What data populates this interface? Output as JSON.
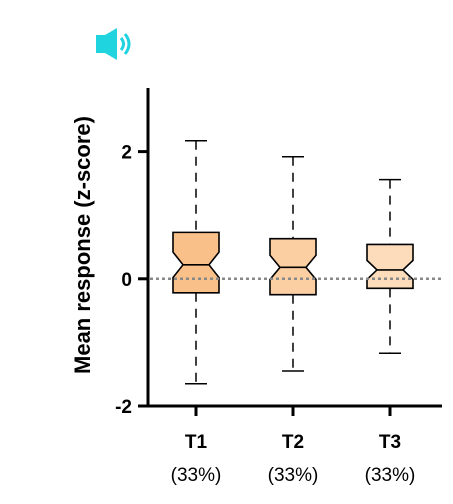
{
  "icon": {
    "name": "speaker-icon",
    "color": "#1fd3df"
  },
  "chart_data": {
    "type": "box",
    "title": "",
    "xlabel": "",
    "ylabel": "Mean response (z-score)",
    "ylim": [
      -2,
      3
    ],
    "yticks": [
      -2,
      0,
      2
    ],
    "ytick_labels": [
      "-2",
      "0",
      "2"
    ],
    "reference_line": {
      "y": 0,
      "style": "dotted",
      "color": "#888888"
    },
    "grid": false,
    "notched": true,
    "categories": [
      "T1",
      "T2",
      "T3"
    ],
    "category_sublabels": [
      "(33%)",
      "(33%)",
      "(33%)"
    ],
    "colors": [
      "#f9c08a",
      "#fbcfa2",
      "#fcdcbb"
    ],
    "boxes": [
      {
        "name": "T1",
        "min": -1.65,
        "q1": -0.22,
        "median": 0.22,
        "q3": 0.73,
        "max": 2.17,
        "notch_low": 0.02,
        "notch_high": 0.42
      },
      {
        "name": "T2",
        "min": -1.45,
        "q1": -0.25,
        "median": 0.18,
        "q3": 0.63,
        "max": 1.92,
        "notch_low": -0.01,
        "notch_high": 0.37
      },
      {
        "name": "T3",
        "min": -1.17,
        "q1": -0.15,
        "median": 0.14,
        "q3": 0.54,
        "max": 1.56,
        "notch_low": -0.01,
        "notch_high": 0.29
      }
    ]
  }
}
